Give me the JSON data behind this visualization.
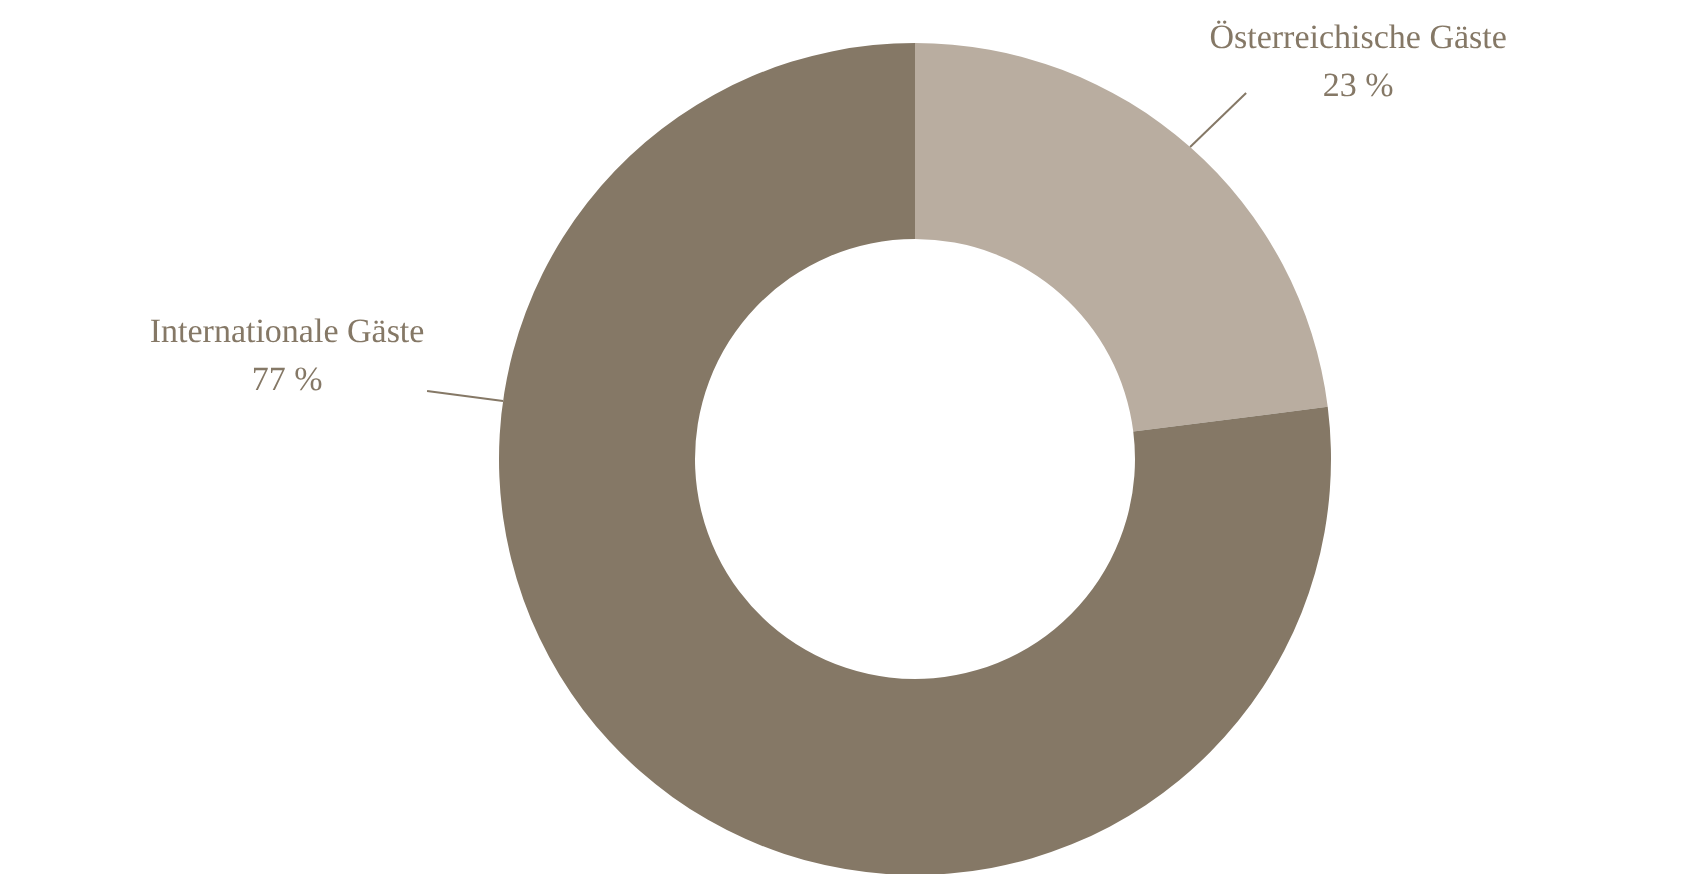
{
  "chart_data": {
    "type": "donut",
    "categories": [
      "Österreichische Gäste",
      "Internationale Gäste"
    ],
    "values": [
      23,
      77
    ],
    "colors": [
      "#b9ada0",
      "#857866"
    ],
    "value_labels": [
      "23 %",
      "77 %"
    ]
  }
}
